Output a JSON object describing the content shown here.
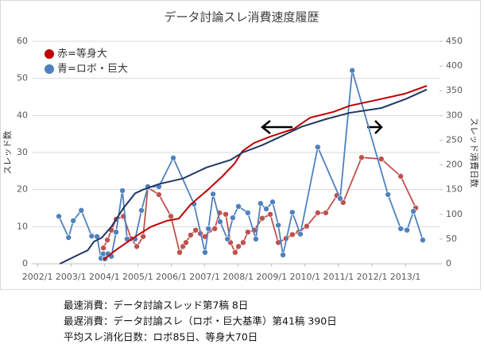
{
  "chart_data": {
    "type": "line",
    "title": "データ討論スレ消費速度履歴",
    "ylabel": "スレッド数",
    "y2label": "スレッド消費日数",
    "xlim": [
      2001.83,
      2014.02
    ],
    "xticks": [
      {
        "value": 2002,
        "label": "2002/1"
      },
      {
        "value": 2003,
        "label": "2003/1"
      },
      {
        "value": 2004,
        "label": "2004/1"
      },
      {
        "value": 2005,
        "label": "2005/1"
      },
      {
        "value": 2006,
        "label": "2006/1"
      },
      {
        "value": 2007,
        "label": "2007/1"
      },
      {
        "value": 2008,
        "label": "2008/1"
      },
      {
        "value": 2009,
        "label": "2009/1"
      },
      {
        "value": 2010,
        "label": "2010/1"
      },
      {
        "value": 2011,
        "label": "2011/1"
      },
      {
        "value": 2012,
        "label": "2012/1"
      },
      {
        "value": 2013,
        "label": "2013/1"
      }
    ],
    "ylim": [
      0,
      60
    ],
    "yticks": [
      0,
      10,
      20,
      30,
      40,
      50,
      60
    ],
    "y2lim": [
      0,
      450
    ],
    "y2ticks": [
      0,
      50,
      100,
      150,
      200,
      250,
      300,
      350,
      400,
      450
    ],
    "grid": true,
    "legend": "upper left",
    "series": [
      {
        "name": "赤=等身大",
        "color": "#c00000",
        "x": [
          2003.97,
          2004.33,
          2004.68,
          2005.04,
          2005.4,
          2005.87,
          2006.23,
          2006.58,
          2007.06,
          2007.53,
          2007.89,
          2008.13,
          2008.48,
          2008.96,
          2009.67,
          2010.15,
          2010.86,
          2011.33,
          2012.05,
          2013.0,
          2013.64
        ],
        "values": [
          1,
          3.6,
          5.8,
          8,
          10,
          11.6,
          12.2,
          16,
          19.7,
          23.6,
          27,
          30.4,
          32.6,
          34.3,
          36.4,
          39.4,
          41,
          42.6,
          44,
          45.9,
          48
        ]
      },
      {
        "name": "青=ロボ・巨大",
        "color": "#1f3864",
        "x": [
          2002.67,
          2002.9,
          2003.26,
          2003.5,
          2003.69,
          2003.92,
          2004.21,
          2004.57,
          2004.92,
          2005.16,
          2005.63,
          2006.35,
          2007.06,
          2007.77,
          2008.13,
          2008.72,
          2009.2,
          2009.91,
          2010.62,
          2011.33,
          2012.28,
          2013.0,
          2013.64
        ],
        "values": [
          0,
          1,
          2.6,
          3.6,
          6,
          7,
          10,
          15,
          19,
          20,
          21.5,
          23,
          26,
          28,
          30,
          32,
          34,
          37,
          39,
          40.7,
          42,
          44.4,
          47
        ]
      },
      {
        "color": "#c0504d",
        "axis": "y2",
        "x": [
          2003.97,
          2004.09,
          2004.21,
          2004.35,
          2004.57,
          2004.8,
          2004.97,
          2005.16,
          2005.3,
          2005.63,
          2005.99,
          2006.25,
          2006.35,
          2006.44,
          2006.58,
          2006.73,
          2006.87,
          2007.01,
          2007.15,
          2007.3,
          2007.44,
          2007.63,
          2007.77,
          2007.91,
          2008.01,
          2008.15,
          2008.29,
          2008.48,
          2008.72,
          2008.96,
          2009.2,
          2009.43,
          2009.62,
          2009.81,
          2010.05,
          2010.38,
          2010.62,
          2010.95,
          2011.14,
          2011.69,
          2012.28,
          2012.86,
          2013.31
        ],
        "values": [
          32,
          48,
          68,
          90,
          96,
          51,
          35,
          55,
          154,
          140,
          96,
          23,
          35,
          43,
          58,
          68,
          61,
          55,
          68,
          71,
          103,
          100,
          43,
          23,
          35,
          43,
          64,
          68,
          92,
          100,
          43,
          51,
          59,
          64,
          76,
          103,
          103,
          138,
          124,
          215,
          212,
          177,
          113
        ]
      },
      {
        "color": "#4f81bd",
        "axis": "y2",
        "x": [
          2002.64,
          2002.93,
          2003.07,
          2003.31,
          2003.62,
          2003.78,
          2003.9,
          2003.97,
          2004.02,
          2004.11,
          2004.21,
          2004.35,
          2004.54,
          2004.68,
          2004.92,
          2005.11,
          2005.3,
          2005.63,
          2006.06,
          2006.68,
          2007.01,
          2007.11,
          2007.25,
          2007.46,
          2007.68,
          2007.84,
          2008.01,
          2008.29,
          2008.53,
          2008.67,
          2008.84,
          2009.03,
          2009.2,
          2009.34,
          2009.62,
          2009.86,
          2010.38,
          2011.05,
          2011.41,
          2012.48,
          2012.86,
          2013.05,
          2013.24,
          2013.52
        ],
        "values": [
          96,
          53,
          87,
          108,
          56,
          55,
          11,
          20,
          10,
          20,
          15,
          64,
          148,
          50,
          50,
          108,
          156,
          156,
          214,
          121,
          23,
          71,
          141,
          85,
          50,
          93,
          116,
          103,
          50,
          122,
          111,
          125,
          78,
          18,
          104,
          60,
          236,
          132,
          391,
          140,
          71,
          68,
          106,
          48
        ]
      }
    ]
  },
  "notes": [
    "最速消費：データ討論スレッド第7稿 8日",
    "最遅消費：データ討論スレ（ロボ・巨大基準）第41稿 390日",
    "平均スレ消化日数：ロボ85日、等身大70日"
  ]
}
